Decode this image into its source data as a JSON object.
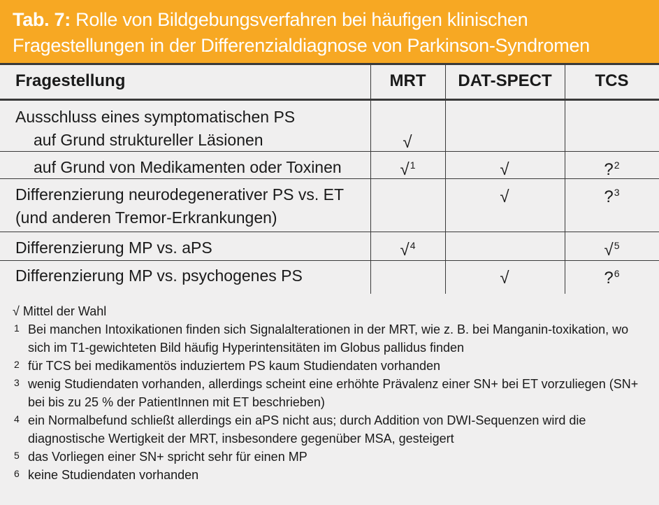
{
  "title": {
    "tab_label": "Tab. 7:",
    "text": "Rolle von Bildgebungsverfahren bei häufigen klinischen Fragestellungen in der Differenzialdiagnose von Parkinson-Syndromen"
  },
  "table": {
    "headers": {
      "question": "Fragestellung",
      "mrt": "MRT",
      "datspect": "DAT-SPECT",
      "tcs": "TCS"
    },
    "rows": [
      {
        "line1": "Ausschluss eines symptomatischen PS",
        "line2": "auf Grund struktureller Läsionen",
        "mrt": "√",
        "mrt_sup": "",
        "datspect": "",
        "datspect_sup": "",
        "tcs": "",
        "tcs_sup": ""
      },
      {
        "line1": "auf Grund von Medikamenten oder Toxinen",
        "mrt": "√",
        "mrt_sup": "1",
        "datspect": "√",
        "datspect_sup": "",
        "tcs": "?",
        "tcs_sup": "2"
      },
      {
        "line1": "Differenzierung neurodegenerativer PS vs. ET",
        "line2": "(und anderen Tremor-Erkrankungen)",
        "mrt": "",
        "mrt_sup": "",
        "datspect": "√",
        "datspect_sup": "",
        "tcs": "?",
        "tcs_sup": "3"
      },
      {
        "line1": "Differenzierung MP vs. aPS",
        "mrt": "√",
        "mrt_sup": "4",
        "datspect": "",
        "datspect_sup": "",
        "tcs": "√",
        "tcs_sup": "5"
      },
      {
        "line1": "Differenzierung MP vs. psychogenes PS",
        "mrt": "",
        "mrt_sup": "",
        "datspect": "√",
        "datspect_sup": "",
        "tcs": "?",
        "tcs_sup": "6"
      }
    ]
  },
  "footnotes": {
    "legend": "√ Mittel der Wahl",
    "items": [
      {
        "marker": "1",
        "text": "Bei manchen Intoxikationen finden sich Signalalterationen in der MRT, wie z. B. bei Manganin-toxikation, wo sich im T1-gewichteten Bild häufig Hyperintensitäten im Globus pallidus finden"
      },
      {
        "marker": "2",
        "text": "für TCS bei medikamentös induziertem PS kaum Studiendaten vorhanden"
      },
      {
        "marker": "3",
        "text": "wenig Studiendaten vorhanden, allerdings scheint eine erhöhte Prävalenz einer SN+ bei ET vorzuliegen (SN+ bei bis zu 25 % der PatientInnen mit ET beschrieben)"
      },
      {
        "marker": "4",
        "text": "ein Normalbefund schließt allerdings ein aPS nicht aus; durch Addition von DWI-Sequenzen wird die diagnostische Wertigkeit der MRT, insbesondere gegenüber MSA, gesteigert"
      },
      {
        "marker": "5",
        "text": "das Vorliegen einer SN+ spricht sehr für einen MP"
      },
      {
        "marker": "6",
        "text": "keine Studiendaten vorhanden"
      }
    ]
  },
  "colors": {
    "title_background": "#f7a823",
    "title_text": "#ffffff",
    "body_background": "#f0efef",
    "rule": "#3a3a3a"
  }
}
